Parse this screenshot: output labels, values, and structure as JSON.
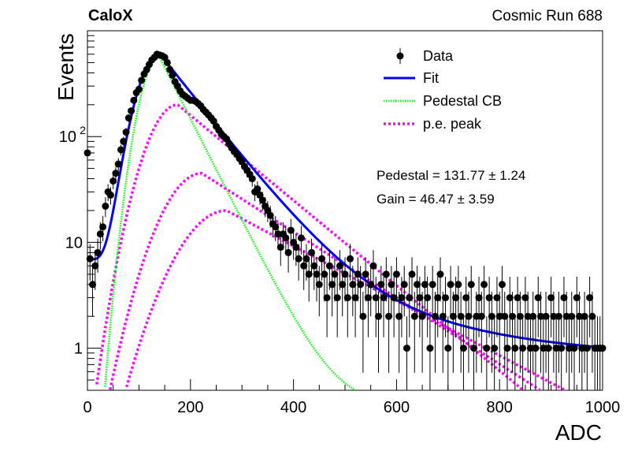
{
  "chart_data": {
    "type": "scatter",
    "title_left": "CaloX",
    "title_right": "Cosmic Run 688",
    "xlabel": "ADC",
    "ylabel": "Events",
    "xlim": [
      0,
      1000
    ],
    "ylim": [
      0.4,
      1000
    ],
    "y_scale": "log",
    "x_ticks": [
      "0",
      "200",
      "400",
      "600",
      "800",
      "1000"
    ],
    "y_ticks": [
      {
        "value": 1,
        "base": "1",
        "exp": ""
      },
      {
        "value": 10,
        "base": "10",
        "exp": ""
      },
      {
        "value": 100,
        "base": "10",
        "exp": "2"
      }
    ],
    "grid": false,
    "legend_position": "top-right",
    "legend": {
      "data": "Data",
      "fit": "Fit",
      "pedestal": "Pedestal CB",
      "pe": "p.e. peak"
    },
    "stats": {
      "pedestal": "Pedestal = 131.77 ± 1.24",
      "gain": "Gain = 46.47 ± 3.59"
    },
    "colors": {
      "data": "#000000",
      "fit": "#0000ff",
      "pedestal": "#00ff00",
      "pe": "#ff00ff"
    },
    "data_points": [
      [
        0,
        70
      ],
      [
        5,
        7
      ],
      [
        10,
        4
      ],
      [
        15,
        6
      ],
      [
        20,
        8
      ],
      [
        25,
        12
      ],
      [
        30,
        14
      ],
      [
        35,
        22
      ],
      [
        40,
        30
      ],
      [
        45,
        28
      ],
      [
        50,
        38
      ],
      [
        55,
        45
      ],
      [
        60,
        55
      ],
      [
        65,
        75
      ],
      [
        70,
        90
      ],
      [
        75,
        110
      ],
      [
        80,
        150
      ],
      [
        85,
        175
      ],
      [
        90,
        220
      ],
      [
        95,
        260
      ],
      [
        100,
        280
      ],
      [
        105,
        340
      ],
      [
        110,
        390
      ],
      [
        115,
        430
      ],
      [
        120,
        480
      ],
      [
        125,
        530
      ],
      [
        130,
        560
      ],
      [
        135,
        600
      ],
      [
        140,
        590
      ],
      [
        145,
        580
      ],
      [
        150,
        560
      ],
      [
        155,
        500
      ],
      [
        160,
        430
      ],
      [
        165,
        380
      ],
      [
        170,
        330
      ],
      [
        175,
        300
      ],
      [
        180,
        270
      ],
      [
        185,
        250
      ],
      [
        190,
        240
      ],
      [
        195,
        230
      ],
      [
        200,
        220
      ],
      [
        205,
        220
      ],
      [
        210,
        215
      ],
      [
        215,
        205
      ],
      [
        220,
        195
      ],
      [
        225,
        180
      ],
      [
        230,
        170
      ],
      [
        235,
        160
      ],
      [
        240,
        150
      ],
      [
        245,
        140
      ],
      [
        250,
        125
      ],
      [
        255,
        115
      ],
      [
        260,
        105
      ],
      [
        265,
        100
      ],
      [
        270,
        95
      ],
      [
        275,
        85
      ],
      [
        280,
        78
      ],
      [
        285,
        72
      ],
      [
        290,
        68
      ],
      [
        295,
        62
      ],
      [
        300,
        58
      ],
      [
        305,
        52
      ],
      [
        310,
        48
      ],
      [
        315,
        44
      ],
      [
        320,
        40
      ],
      [
        325,
        30
      ],
      [
        330,
        32
      ],
      [
        335,
        28
      ],
      [
        340,
        25
      ],
      [
        345,
        22
      ],
      [
        350,
        20
      ],
      [
        355,
        18
      ],
      [
        360,
        15
      ],
      [
        365,
        14
      ],
      [
        370,
        12
      ],
      [
        375,
        9
      ],
      [
        380,
        12
      ],
      [
        385,
        11
      ],
      [
        390,
        8
      ],
      [
        395,
        13
      ],
      [
        400,
        10
      ],
      [
        405,
        9
      ],
      [
        410,
        7
      ],
      [
        415,
        11
      ],
      [
        420,
        6
      ],
      [
        425,
        7
      ],
      [
        430,
        5
      ],
      [
        435,
        8
      ],
      [
        440,
        6
      ],
      [
        445,
        5
      ],
      [
        450,
        4
      ],
      [
        455,
        7
      ],
      [
        460,
        5
      ],
      [
        465,
        3
      ],
      [
        470,
        6
      ],
      [
        475,
        4
      ],
      [
        480,
        5
      ],
      [
        485,
        3
      ],
      [
        490,
        6
      ],
      [
        495,
        4
      ],
      [
        500,
        5
      ],
      [
        505,
        3
      ],
      [
        510,
        7
      ],
      [
        515,
        4
      ],
      [
        520,
        3
      ],
      [
        525,
        5
      ],
      [
        530,
        4
      ],
      [
        535,
        2
      ],
      [
        540,
        5
      ],
      [
        545,
        3
      ],
      [
        550,
        4
      ],
      [
        555,
        6
      ],
      [
        560,
        3
      ],
      [
        565,
        2
      ],
      [
        570,
        4
      ],
      [
        575,
        3
      ],
      [
        580,
        5
      ],
      [
        585,
        2
      ],
      [
        590,
        4
      ],
      [
        595,
        3
      ],
      [
        600,
        5
      ],
      [
        605,
        2
      ],
      [
        610,
        3
      ],
      [
        615,
        4
      ],
      [
        620,
        1
      ],
      [
        625,
        3
      ],
      [
        630,
        5
      ],
      [
        635,
        2
      ],
      [
        640,
        4
      ],
      [
        645,
        3
      ],
      [
        650,
        2
      ],
      [
        655,
        4
      ],
      [
        660,
        3
      ],
      [
        665,
        1
      ],
      [
        670,
        4
      ],
      [
        675,
        2
      ],
      [
        680,
        3
      ],
      [
        685,
        5
      ],
      [
        690,
        2
      ],
      [
        695,
        3
      ],
      [
        700,
        1
      ],
      [
        705,
        4
      ],
      [
        710,
        2
      ],
      [
        715,
        3
      ],
      [
        720,
        4
      ],
      [
        725,
        2
      ],
      [
        730,
        1
      ],
      [
        735,
        3
      ],
      [
        740,
        2
      ],
      [
        745,
        4
      ],
      [
        750,
        1
      ],
      [
        755,
        2
      ],
      [
        760,
        3
      ],
      [
        765,
        2
      ],
      [
        770,
        4
      ],
      [
        775,
        1
      ],
      [
        780,
        3
      ],
      [
        785,
        2
      ],
      [
        790,
        1
      ],
      [
        795,
        3
      ],
      [
        800,
        2
      ],
      [
        805,
        4
      ],
      [
        810,
        2
      ],
      [
        815,
        1
      ],
      [
        820,
        3
      ],
      [
        825,
        2
      ],
      [
        830,
        1
      ],
      [
        835,
        3
      ],
      [
        840,
        2
      ],
      [
        845,
        1
      ],
      [
        850,
        3
      ],
      [
        855,
        2
      ],
      [
        860,
        1
      ],
      [
        865,
        2
      ],
      [
        870,
        1
      ],
      [
        875,
        3
      ],
      [
        880,
        2
      ],
      [
        885,
        1
      ],
      [
        890,
        2
      ],
      [
        895,
        1
      ],
      [
        900,
        3
      ],
      [
        905,
        2
      ],
      [
        910,
        1
      ],
      [
        915,
        2
      ],
      [
        920,
        1
      ],
      [
        925,
        3
      ],
      [
        930,
        2
      ],
      [
        935,
        1
      ],
      [
        940,
        2
      ],
      [
        945,
        1
      ],
      [
        950,
        3
      ],
      [
        955,
        2
      ],
      [
        960,
        1
      ],
      [
        965,
        2
      ],
      [
        970,
        1
      ],
      [
        975,
        3
      ],
      [
        980,
        2
      ],
      [
        985,
        1
      ],
      [
        990,
        1
      ],
      [
        995,
        1
      ],
      [
        1000,
        1
      ]
    ]
  }
}
